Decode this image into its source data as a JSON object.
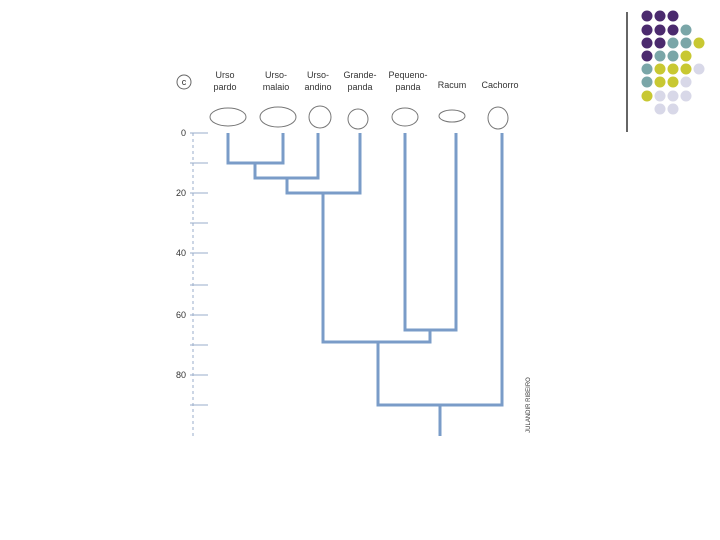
{
  "panel_label": "c",
  "taxa": [
    {
      "label": [
        "Urso",
        "pardo"
      ]
    },
    {
      "label": [
        "Urso-",
        "malaio"
      ]
    },
    {
      "label": [
        "Urso-",
        "andino"
      ]
    },
    {
      "label": [
        "Grande-",
        "panda"
      ]
    },
    {
      "label": [
        "Pequeno-",
        "panda"
      ]
    },
    {
      "label": [
        "Racum"
      ]
    },
    {
      "label": [
        "Cachorro"
      ]
    }
  ],
  "axis_labels": [
    "0",
    "20",
    "40",
    "60",
    "80"
  ],
  "credit": "JULANDIR RIBEIRO"
}
